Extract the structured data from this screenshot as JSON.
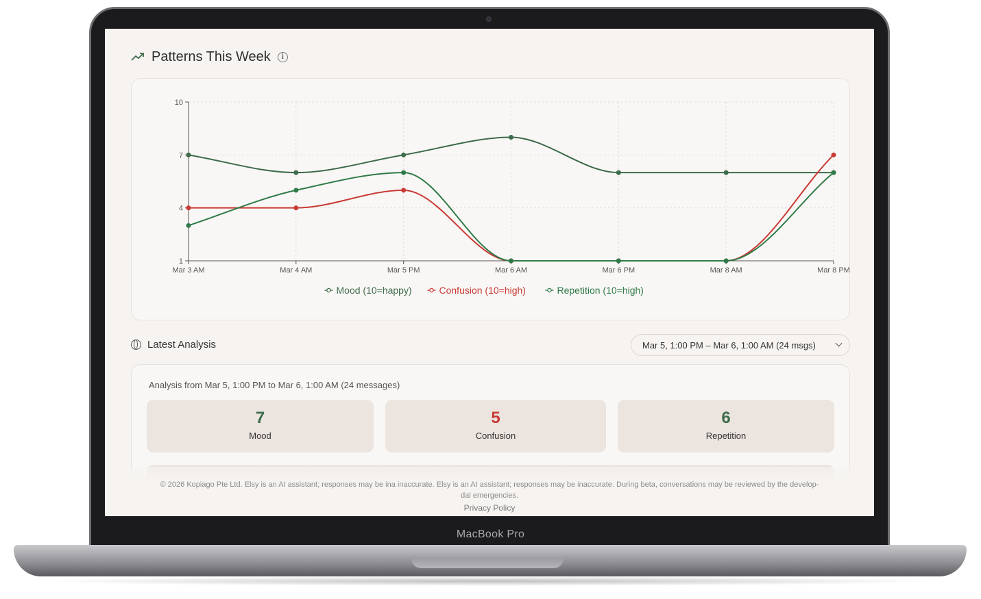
{
  "device": {
    "brand_label": "MacBook Pro"
  },
  "patterns": {
    "title": "Patterns This Week",
    "icon": "trend-up-icon",
    "info_icon": "info-icon"
  },
  "chart_data": {
    "type": "line",
    "x": [
      "Mar 3 AM",
      "Mar 4 AM",
      "Mar 5 PM",
      "Mar 6 AM",
      "Mar 6 PM",
      "Mar 8 AM",
      "Mar 8 PM"
    ],
    "yticks": [
      1,
      4,
      7,
      10
    ],
    "ylim": [
      1,
      10
    ],
    "grid": true,
    "legend_position": "bottom",
    "series": [
      {
        "name": "Mood (10=happy)",
        "color": "#3d6b4b",
        "values": [
          7,
          6,
          7,
          8,
          6,
          6,
          6
        ]
      },
      {
        "name": "Confusion (10=high)",
        "color": "#c93a35",
        "values": [
          4,
          4,
          5,
          1,
          1,
          1,
          7
        ]
      },
      {
        "name": "Repetition (10=high)",
        "color": "#2e7a48",
        "values": [
          3,
          5,
          6,
          1,
          1,
          1,
          6
        ]
      }
    ]
  },
  "analysis": {
    "title": "Latest Analysis",
    "range_selected": "Mar 5, 1:00 PM – Mar 6, 1:00 AM (24 msgs)",
    "caption": "Analysis from Mar 5, 1:00 PM to Mar 6, 1:00 AM (24 messages)",
    "metrics": [
      {
        "value": "7",
        "label": "Mood",
        "color": "#3d6b4b"
      },
      {
        "value": "5",
        "label": "Confusion",
        "color": "#c93a35"
      },
      {
        "value": "6",
        "label": "Repetition",
        "color": "#3d6b4b"
      }
    ]
  },
  "footer": {
    "disclaimer": "© 2026 Kopiago Pte Ltd. Elsy is an AI assistant; responses may be ina inaccurate. Elsy is an AI assistant; responses may be inaccurate. During beta, conversations may be reviewed by the develop-",
    "disclaimer_line2": "dal emergencies.",
    "privacy_link": "Privacy Policy"
  }
}
